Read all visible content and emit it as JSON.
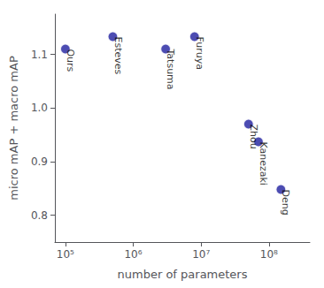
{
  "chart_data": {
    "type": "scatter",
    "x_label": "number of parameters",
    "y_label": "micro mAP + macro mAP",
    "x": [
      100000,
      500000,
      3000000,
      8000000,
      50000000,
      70000000,
      150000000
    ],
    "values": [
      1.11,
      1.133,
      1.11,
      1.133,
      0.97,
      0.937,
      0.848
    ],
    "annotations": [
      "Ours",
      "Esteves",
      "Tatsuma",
      "Furuya",
      "Zhou",
      "Kanezaki",
      "Deng"
    ],
    "color": "#1f1f9f",
    "marker": "circle",
    "log": "x",
    "xlim": [
      70000,
      400000000
    ],
    "xticks": [
      {
        "value": 100000,
        "label": "10⁵"
      },
      {
        "value": 1000000,
        "label": "10⁶"
      },
      {
        "value": 10000000,
        "label": "10⁷"
      },
      {
        "value": 100000000,
        "label": "10⁸"
      }
    ],
    "ylim": [
      0.75,
      1.175
    ],
    "yticks": [
      0.8,
      0.9,
      {
        "value": 1.0,
        "label": "1.0"
      },
      1.1
    ],
    "grid": false
  }
}
